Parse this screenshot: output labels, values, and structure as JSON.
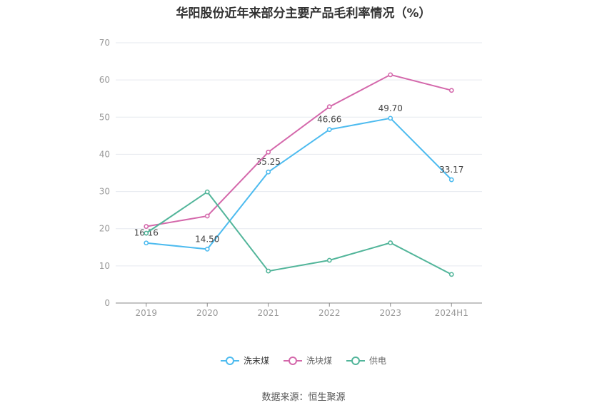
{
  "chart_data": {
    "type": "line",
    "title": "华阳股份近年来部分主要产品毛利率情况（%）",
    "categories": [
      "2019",
      "2020",
      "2021",
      "2022",
      "2023",
      "2024H1"
    ],
    "ylim": [
      0,
      70
    ],
    "yticks": [
      0,
      10,
      20,
      30,
      40,
      50,
      60,
      70
    ],
    "grid": true,
    "legend_position": "bottom",
    "series": [
      {
        "name": "洗末煤",
        "color": "#4dbbef",
        "values": [
          16.16,
          14.5,
          35.25,
          46.66,
          49.7,
          33.17
        ],
        "labels": [
          "16.16",
          "14.50",
          "35.25",
          "46.66",
          "49.70",
          "33.17"
        ]
      },
      {
        "name": "洗块煤",
        "color": "#d468ab",
        "values": [
          20.6,
          23.4,
          40.6,
          52.8,
          61.4,
          57.2
        ]
      },
      {
        "name": "供电",
        "color": "#52b59a",
        "values": [
          18.8,
          29.9,
          8.6,
          11.5,
          16.2,
          7.7
        ]
      }
    ]
  },
  "source": "数据来源：恒生聚源"
}
